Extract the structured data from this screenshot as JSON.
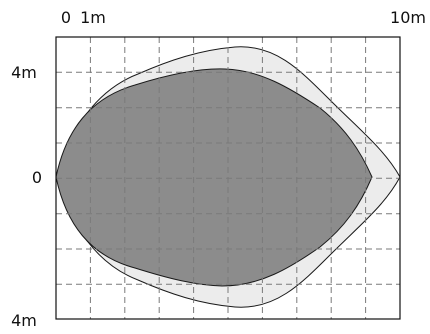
{
  "labels": {
    "x_zero": "0",
    "x_one": "1m",
    "x_ten": "10m",
    "y_top": "4m",
    "y_zero": "0",
    "y_bottom": "4m"
  },
  "colors": {
    "outer_fill": "#ececec",
    "inner_fill": "#8c8c8c",
    "outline": "#1a1a1a",
    "grid": "#7a7a7a",
    "frame": "#111111"
  },
  "grid": {
    "x_units": 10,
    "y_units": 9,
    "style": "dashed"
  }
}
